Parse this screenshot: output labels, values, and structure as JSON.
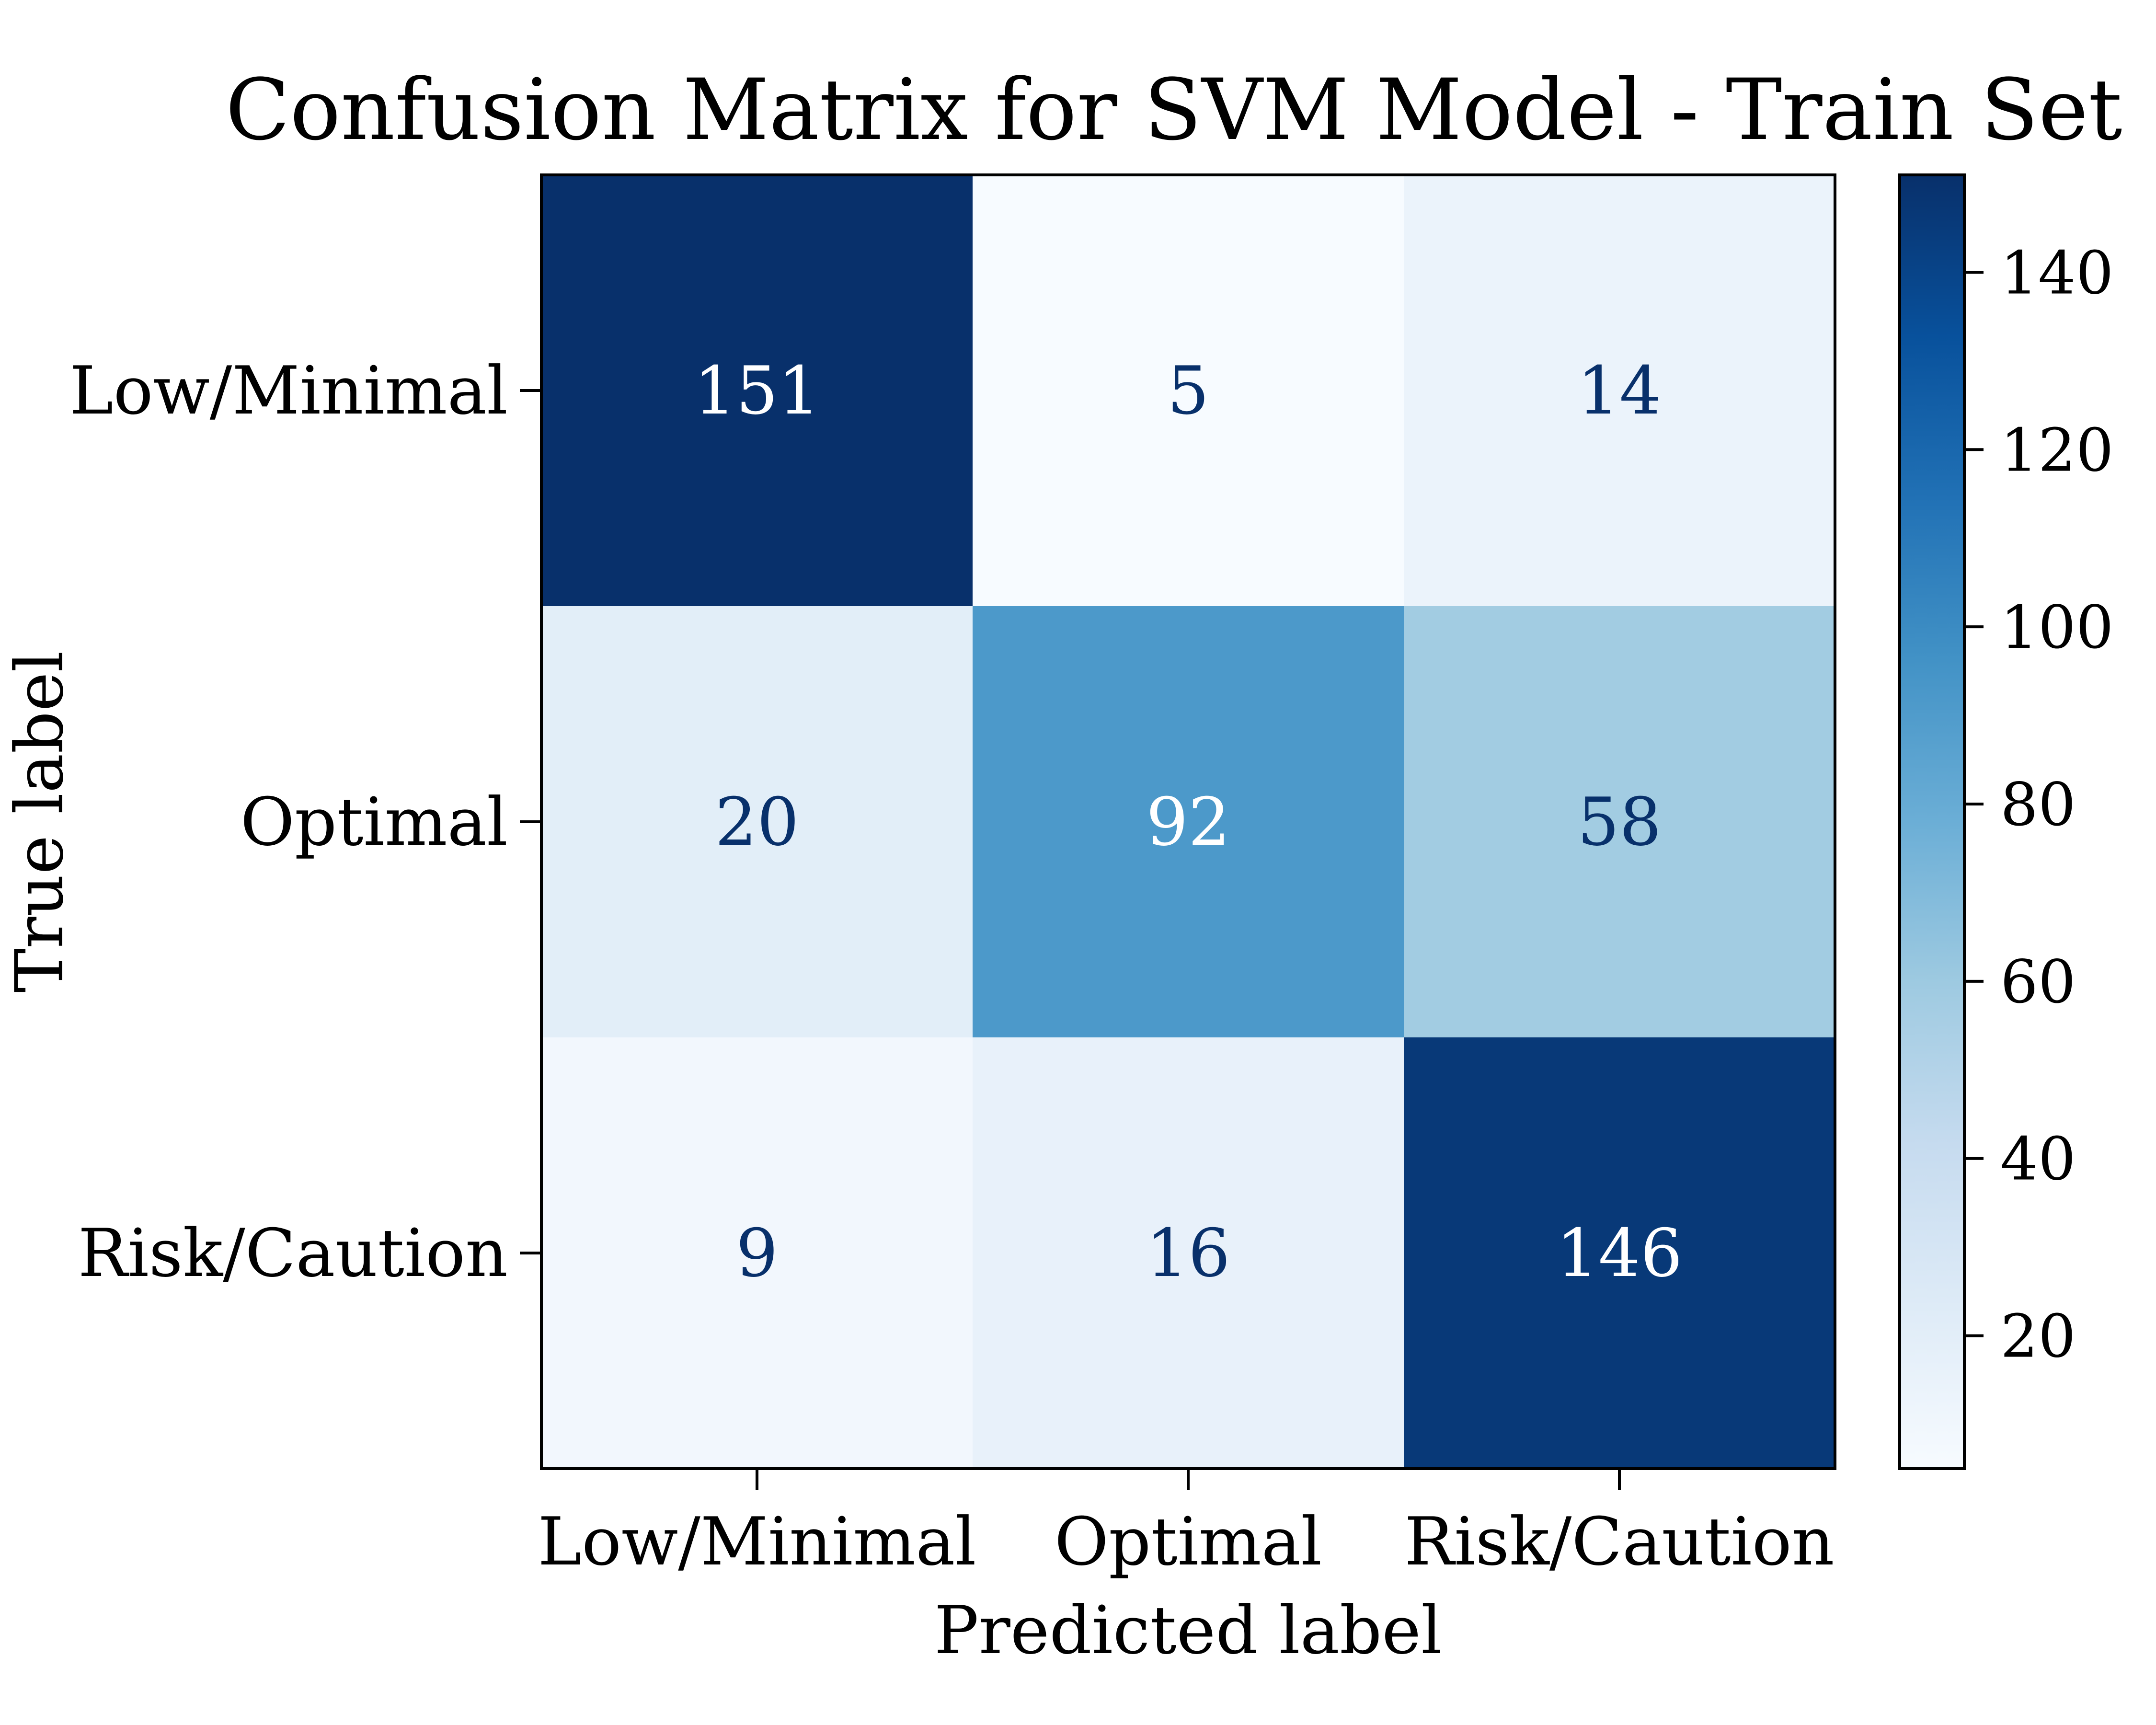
{
  "chart_data": {
    "type": "heatmap",
    "title": "Confusion Matrix for SVM Model - Train Set",
    "xlabel": "Predicted label",
    "ylabel": "True label",
    "x_categories": [
      "Low/Minimal",
      "Optimal",
      "Risk/Caution"
    ],
    "y_categories": [
      "Low/Minimal",
      "Optimal",
      "Risk/Caution"
    ],
    "values": [
      [
        151,
        5,
        14
      ],
      [
        20,
        92,
        58
      ],
      [
        9,
        16,
        146
      ]
    ],
    "colormap": "Blues",
    "colorbar": {
      "range": [
        5,
        151
      ],
      "ticks": [
        20,
        40,
        60,
        80,
        100,
        120,
        140
      ]
    },
    "text_colors": {
      "dark_cell": "#ffffff",
      "light_cell": "#08306b"
    }
  }
}
